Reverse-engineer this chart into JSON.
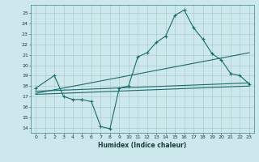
{
  "xlabel": "Humidex (Indice chaleur)",
  "bg_color": "#cce8ec",
  "grid_color": "#aacccc",
  "line_color": "#1a6b6b",
  "xlim": [
    -0.5,
    23.5
  ],
  "ylim": [
    13.5,
    25.8
  ],
  "xticks": [
    0,
    1,
    2,
    3,
    4,
    5,
    6,
    7,
    8,
    9,
    10,
    11,
    12,
    13,
    14,
    15,
    16,
    17,
    18,
    19,
    20,
    21,
    22,
    23
  ],
  "yticks": [
    14,
    15,
    16,
    17,
    18,
    19,
    20,
    21,
    22,
    23,
    24,
    25
  ],
  "curve1_x": [
    0,
    2,
    3,
    4,
    5,
    6,
    7,
    8,
    9,
    10,
    11,
    12,
    13,
    14,
    15,
    16,
    17,
    18,
    19,
    20,
    21,
    22,
    23
  ],
  "curve1_y": [
    17.8,
    19.0,
    17.0,
    16.7,
    16.7,
    16.5,
    14.1,
    13.9,
    17.8,
    18.0,
    20.8,
    21.2,
    22.2,
    22.8,
    24.8,
    25.3,
    23.6,
    22.5,
    21.1,
    20.5,
    19.2,
    19.0,
    18.2
  ],
  "line1_x": [
    0,
    23
  ],
  "line1_y": [
    17.5,
    18.3
  ],
  "line2_x": [
    0,
    23
  ],
  "line2_y": [
    17.3,
    21.2
  ],
  "line3_x": [
    0,
    23
  ],
  "line3_y": [
    17.2,
    18.0
  ]
}
